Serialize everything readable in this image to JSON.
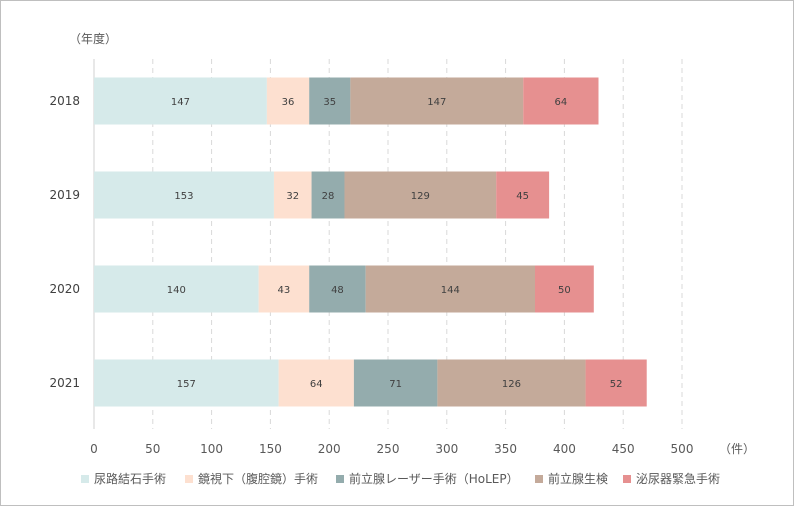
{
  "chart_data": {
    "type": "bar",
    "orientation": "horizontal",
    "stacked": true,
    "y_axis_title": "（年度）",
    "x_axis_unit": "（件）",
    "categories": [
      "2018",
      "2019",
      "2020",
      "2021"
    ],
    "xlim": [
      0,
      500
    ],
    "xticks": [
      0,
      50,
      100,
      150,
      200,
      250,
      300,
      350,
      400,
      450,
      500
    ],
    "grid": "vertical-dashed",
    "legend_position": "bottom",
    "series": [
      {
        "name": "尿路結石手術",
        "color": "#d6eaea",
        "values": [
          147,
          153,
          140,
          157
        ]
      },
      {
        "name": "鏡視下（腹腔鏡）手術",
        "color": "#fde0d0",
        "values": [
          36,
          32,
          43,
          64
        ]
      },
      {
        "name": "前立腺レーザー手術（HoLEP）",
        "color": "#94acad",
        "values": [
          35,
          28,
          48,
          71
        ]
      },
      {
        "name": "前立腺生検",
        "color": "#c4aa9a",
        "values": [
          147,
          129,
          144,
          126
        ]
      },
      {
        "name": "泌尿器緊急手術",
        "color": "#e69090",
        "values": [
          64,
          45,
          50,
          52
        ]
      }
    ]
  }
}
